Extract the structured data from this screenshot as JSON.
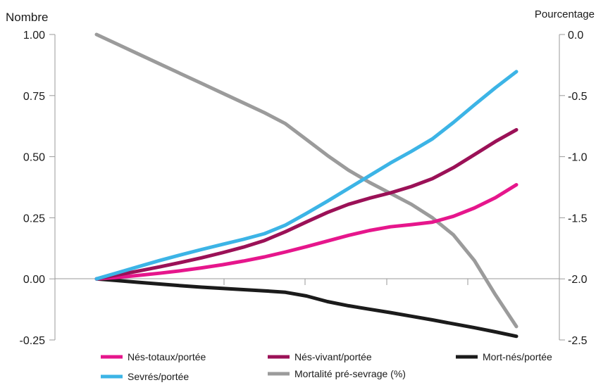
{
  "chart_data": {
    "type": "line",
    "title": "",
    "y_left_label": "Nombre",
    "y_right_label": "Pourcentage",
    "y_left_range": [
      -0.25,
      1.0
    ],
    "y_right_range": [
      -2.5,
      0.0
    ],
    "y_left_ticks": [
      "1.00",
      "0.75",
      "0.50",
      "0.25",
      "0.00",
      "-0.25"
    ],
    "y_right_ticks": [
      "0.0",
      "-0.5",
      "-1.0",
      "-1.5",
      "-2.0",
      "-2.5"
    ],
    "x": [
      0,
      1,
      2,
      3,
      4,
      5,
      6,
      7,
      8,
      9,
      10,
      11,
      12,
      13,
      14,
      15,
      16,
      17,
      18,
      19,
      20
    ],
    "x_range": [
      0,
      20
    ],
    "grid": false,
    "legend_position": "bottom",
    "series": [
      {
        "name": "Nés-totaux/portée",
        "axis": "left",
        "color": "#e6168c",
        "values": [
          0.0,
          0.006,
          0.014,
          0.023,
          0.033,
          0.045,
          0.058,
          0.073,
          0.09,
          0.11,
          0.132,
          0.155,
          0.178,
          0.198,
          0.213,
          0.222,
          0.232,
          0.256,
          0.29,
          0.332,
          0.385
        ]
      },
      {
        "name": "Nés-vivant/portée",
        "axis": "left",
        "color": "#9b1157",
        "values": [
          0.0,
          0.016,
          0.032,
          0.049,
          0.067,
          0.086,
          0.107,
          0.13,
          0.157,
          0.193,
          0.233,
          0.272,
          0.305,
          0.33,
          0.352,
          0.378,
          0.41,
          0.455,
          0.508,
          0.562,
          0.61
        ]
      },
      {
        "name": "Mort-nés/portée",
        "axis": "left",
        "color": "#1b1b1b",
        "values": [
          0.0,
          -0.007,
          -0.014,
          -0.021,
          -0.028,
          -0.034,
          -0.039,
          -0.044,
          -0.049,
          -0.055,
          -0.07,
          -0.093,
          -0.11,
          -0.124,
          -0.138,
          -0.153,
          -0.168,
          -0.184,
          -0.2,
          -0.217,
          -0.235
        ]
      },
      {
        "name": "Sevrés/portée",
        "axis": "left",
        "color": "#3cb4e6",
        "values": [
          0.0,
          0.025,
          0.05,
          0.075,
          0.098,
          0.12,
          0.141,
          0.162,
          0.185,
          0.22,
          0.268,
          0.318,
          0.37,
          0.422,
          0.474,
          0.522,
          0.573,
          0.64,
          0.712,
          0.782,
          0.848
        ]
      },
      {
        "name": "Mortalité pré-sevrage (%)",
        "axis": "right",
        "color": "#9b9b9b",
        "values": [
          0.0,
          -0.08,
          -0.16,
          -0.24,
          -0.32,
          -0.4,
          -0.48,
          -0.56,
          -0.64,
          -0.73,
          -0.86,
          -0.99,
          -1.11,
          -1.21,
          -1.3,
          -1.39,
          -1.5,
          -1.64,
          -1.85,
          -2.13,
          -2.39
        ]
      }
    ]
  }
}
